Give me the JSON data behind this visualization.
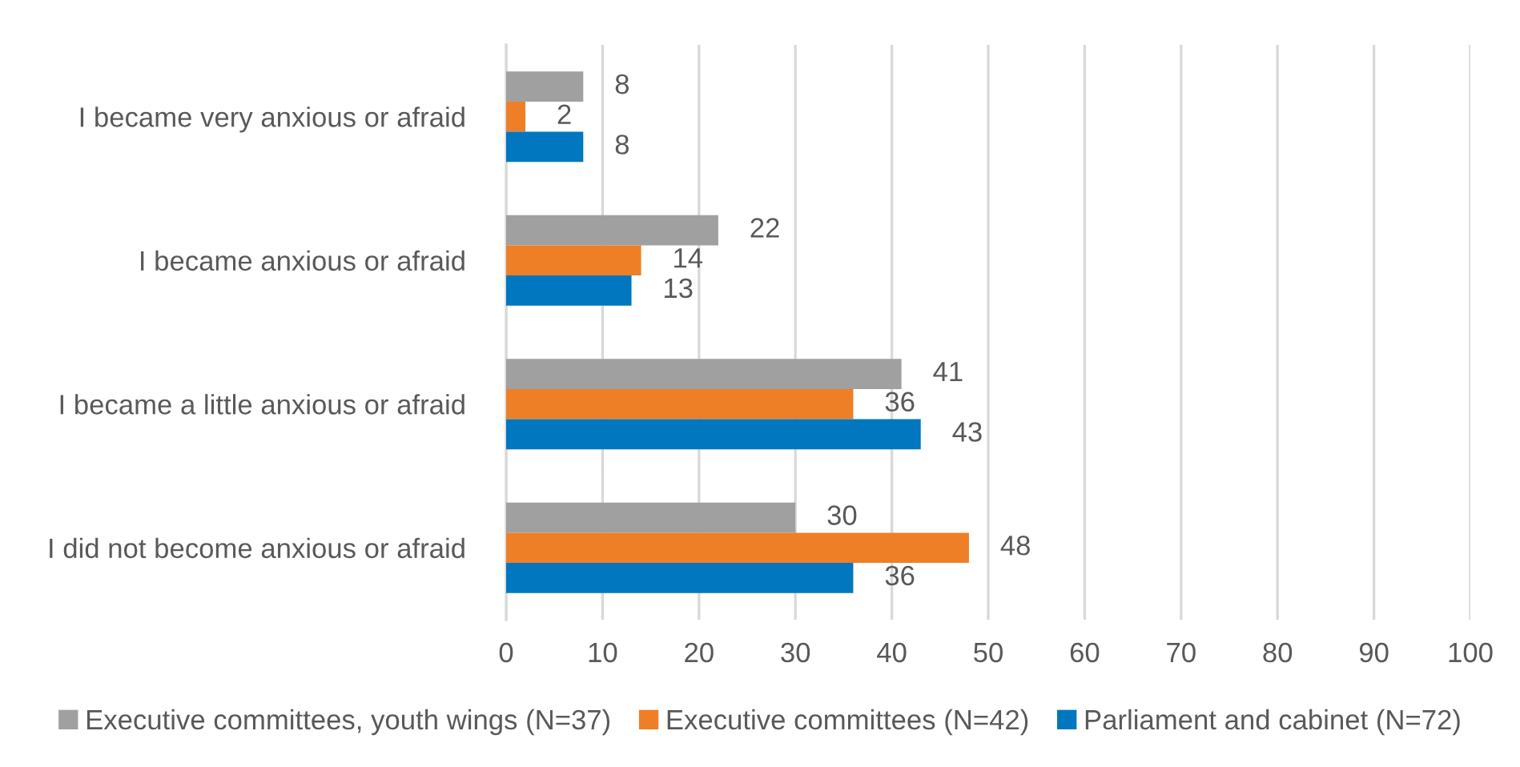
{
  "chart_data": {
    "type": "bar",
    "orientation": "horizontal",
    "categories": [
      "I became very anxious or afraid",
      "I became anxious or afraid",
      "I became a little anxious or afraid",
      "I did not become anxious or afraid"
    ],
    "series": [
      {
        "name": "Executive committees, youth wings (N=37)",
        "color": "#a0a0a0",
        "values": [
          8,
          22,
          41,
          30
        ]
      },
      {
        "name": "Executive committees (N=42)",
        "color": "#ee7f27",
        "values": [
          2,
          14,
          36,
          48
        ]
      },
      {
        "name": "Parliament and cabinet (N=72)",
        "color": "#0077bf",
        "values": [
          8,
          13,
          43,
          36
        ]
      }
    ],
    "xlim": [
      0,
      100
    ],
    "xticks": [
      0,
      10,
      20,
      30,
      40,
      50,
      60,
      70,
      80,
      90,
      100
    ],
    "grid": "x",
    "legend": "bottom",
    "data_labels": true
  }
}
